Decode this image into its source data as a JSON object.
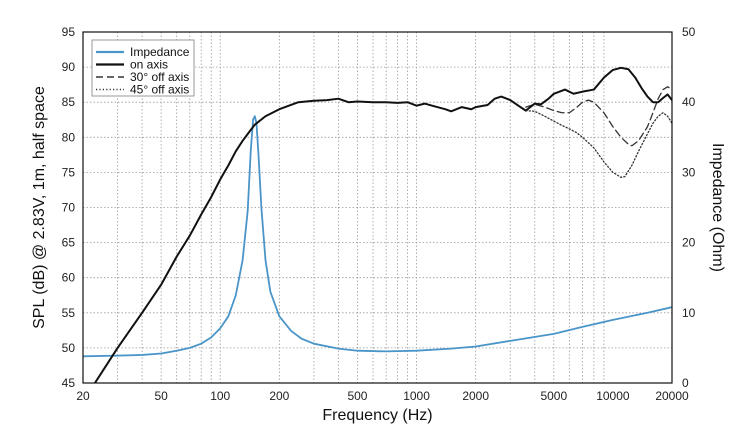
{
  "chart_data": {
    "type": "line",
    "xlabel": "Frequency (Hz)",
    "ylabel": "SPL (dB) @ 2.83V, 1m, half space",
    "y2label": "Impedance (Ohm)",
    "x_scale": "log",
    "xlim": [
      20,
      20000
    ],
    "ylim": [
      45,
      95
    ],
    "y2lim": [
      0,
      50
    ],
    "grid": true,
    "legend_position": "top-left",
    "x_ticks": [
      20,
      50,
      100,
      200,
      500,
      1000,
      2000,
      5000,
      10000,
      20000
    ],
    "x_tick_labels": [
      "20",
      "50",
      "100",
      "200",
      "500",
      "1000",
      "2000",
      "5000",
      "10000",
      "20000"
    ],
    "y_ticks": [
      45,
      50,
      55,
      60,
      65,
      70,
      75,
      80,
      85,
      90,
      95
    ],
    "y_tick_labels": [
      "45",
      "50",
      "55",
      "60",
      "65",
      "70",
      "75",
      "80",
      "85",
      "90",
      "95"
    ],
    "y2_ticks": [
      0,
      10,
      20,
      30,
      40,
      50
    ],
    "y2_tick_labels": [
      "0",
      "10",
      "20",
      "30",
      "40",
      "50"
    ],
    "series": [
      {
        "name": "Impedance",
        "axis": "right",
        "color": "#4a95c8",
        "style": "solid",
        "points": [
          [
            20,
            3.8
          ],
          [
            30,
            3.9
          ],
          [
            40,
            4.0
          ],
          [
            50,
            4.2
          ],
          [
            60,
            4.6
          ],
          [
            70,
            5.0
          ],
          [
            80,
            5.6
          ],
          [
            90,
            6.5
          ],
          [
            100,
            7.8
          ],
          [
            110,
            9.5
          ],
          [
            120,
            12.5
          ],
          [
            130,
            17.5
          ],
          [
            138,
            24.5
          ],
          [
            143,
            33
          ],
          [
            147,
            37.5
          ],
          [
            150,
            38
          ],
          [
            153,
            37
          ],
          [
            157,
            32
          ],
          [
            162,
            25
          ],
          [
            170,
            17.5
          ],
          [
            180,
            13.0
          ],
          [
            200,
            9.5
          ],
          [
            230,
            7.4
          ],
          [
            260,
            6.3
          ],
          [
            300,
            5.6
          ],
          [
            400,
            4.9
          ],
          [
            500,
            4.6
          ],
          [
            700,
            4.5
          ],
          [
            1000,
            4.6
          ],
          [
            1500,
            4.9
          ],
          [
            2000,
            5.2
          ],
          [
            3000,
            6.0
          ],
          [
            5000,
            7.0
          ],
          [
            7000,
            8.0
          ],
          [
            10000,
            9.0
          ],
          [
            15000,
            10.0
          ],
          [
            20000,
            10.8
          ]
        ]
      },
      {
        "name": "on axis",
        "axis": "left",
        "color": "#111111",
        "style": "solid",
        "points": [
          [
            20,
            41
          ],
          [
            23,
            45
          ],
          [
            30,
            50
          ],
          [
            40,
            55
          ],
          [
            50,
            59
          ],
          [
            60,
            63
          ],
          [
            70,
            66
          ],
          [
            80,
            69
          ],
          [
            90,
            71.5
          ],
          [
            100,
            74
          ],
          [
            110,
            76
          ],
          [
            120,
            78
          ],
          [
            130,
            79.5
          ],
          [
            140,
            80.7
          ],
          [
            150,
            81.8
          ],
          [
            170,
            83
          ],
          [
            200,
            84
          ],
          [
            250,
            85
          ],
          [
            300,
            85.2
          ],
          [
            350,
            85.3
          ],
          [
            400,
            85.5
          ],
          [
            450,
            85
          ],
          [
            500,
            85.1
          ],
          [
            600,
            85
          ],
          [
            700,
            85
          ],
          [
            800,
            84.9
          ],
          [
            900,
            85
          ],
          [
            1000,
            84.5
          ],
          [
            1100,
            84.8
          ],
          [
            1200,
            84.5
          ],
          [
            1400,
            84
          ],
          [
            1500,
            83.7
          ],
          [
            1700,
            84.3
          ],
          [
            1900,
            84
          ],
          [
            2000,
            84.3
          ],
          [
            2300,
            84.6
          ],
          [
            2500,
            85.5
          ],
          [
            2700,
            85.8
          ],
          [
            3000,
            85.3
          ],
          [
            3300,
            84.5
          ],
          [
            3600,
            83.8
          ],
          [
            4000,
            84.8
          ],
          [
            4300,
            84.7
          ],
          [
            4700,
            85.5
          ],
          [
            5000,
            86.2
          ],
          [
            5700,
            86.8
          ],
          [
            6300,
            86.2
          ],
          [
            7000,
            86.5
          ],
          [
            8000,
            86.8
          ],
          [
            9000,
            88.5
          ],
          [
            10000,
            89.6
          ],
          [
            11000,
            89.9
          ],
          [
            12000,
            89.7
          ],
          [
            13000,
            88.5
          ],
          [
            14000,
            87
          ],
          [
            15000,
            85.8
          ],
          [
            16000,
            85
          ],
          [
            17000,
            85
          ],
          [
            18000,
            85.6
          ],
          [
            19000,
            86.1
          ],
          [
            20000,
            85.3
          ]
        ]
      },
      {
        "name": "30° off axis",
        "axis": "left",
        "color": "#333333",
        "style": "dashed",
        "points": [
          [
            3600,
            84.3
          ],
          [
            4000,
            84.7
          ],
          [
            4500,
            84.3
          ],
          [
            5000,
            83.8
          ],
          [
            5500,
            83.5
          ],
          [
            6000,
            83.5
          ],
          [
            6500,
            84.2
          ],
          [
            7000,
            85
          ],
          [
            7500,
            85.3
          ],
          [
            8000,
            85
          ],
          [
            9000,
            83.5
          ],
          [
            10000,
            81.5
          ],
          [
            11000,
            80
          ],
          [
            12000,
            79
          ],
          [
            12500,
            78.8
          ],
          [
            13500,
            79.5
          ],
          [
            15000,
            81.5
          ],
          [
            16000,
            83.5
          ],
          [
            17000,
            85.5
          ],
          [
            18000,
            86.8
          ],
          [
            19000,
            87.2
          ],
          [
            20000,
            86.8
          ]
        ]
      },
      {
        "name": "45° off axis",
        "axis": "left",
        "color": "#333333",
        "style": "dotted",
        "points": [
          [
            3600,
            83.8
          ],
          [
            4000,
            83.7
          ],
          [
            4500,
            83
          ],
          [
            5000,
            82.3
          ],
          [
            5500,
            81.7
          ],
          [
            6000,
            81.2
          ],
          [
            6500,
            80.7
          ],
          [
            7000,
            80
          ],
          [
            8000,
            78.5
          ],
          [
            9000,
            76.5
          ],
          [
            10000,
            75
          ],
          [
            11000,
            74.3
          ],
          [
            11500,
            74.4
          ],
          [
            12500,
            76
          ],
          [
            13500,
            78
          ],
          [
            15000,
            80.5
          ],
          [
            16000,
            82
          ],
          [
            17000,
            83
          ],
          [
            18000,
            83.5
          ],
          [
            19000,
            83
          ],
          [
            20000,
            82
          ]
        ]
      }
    ]
  }
}
